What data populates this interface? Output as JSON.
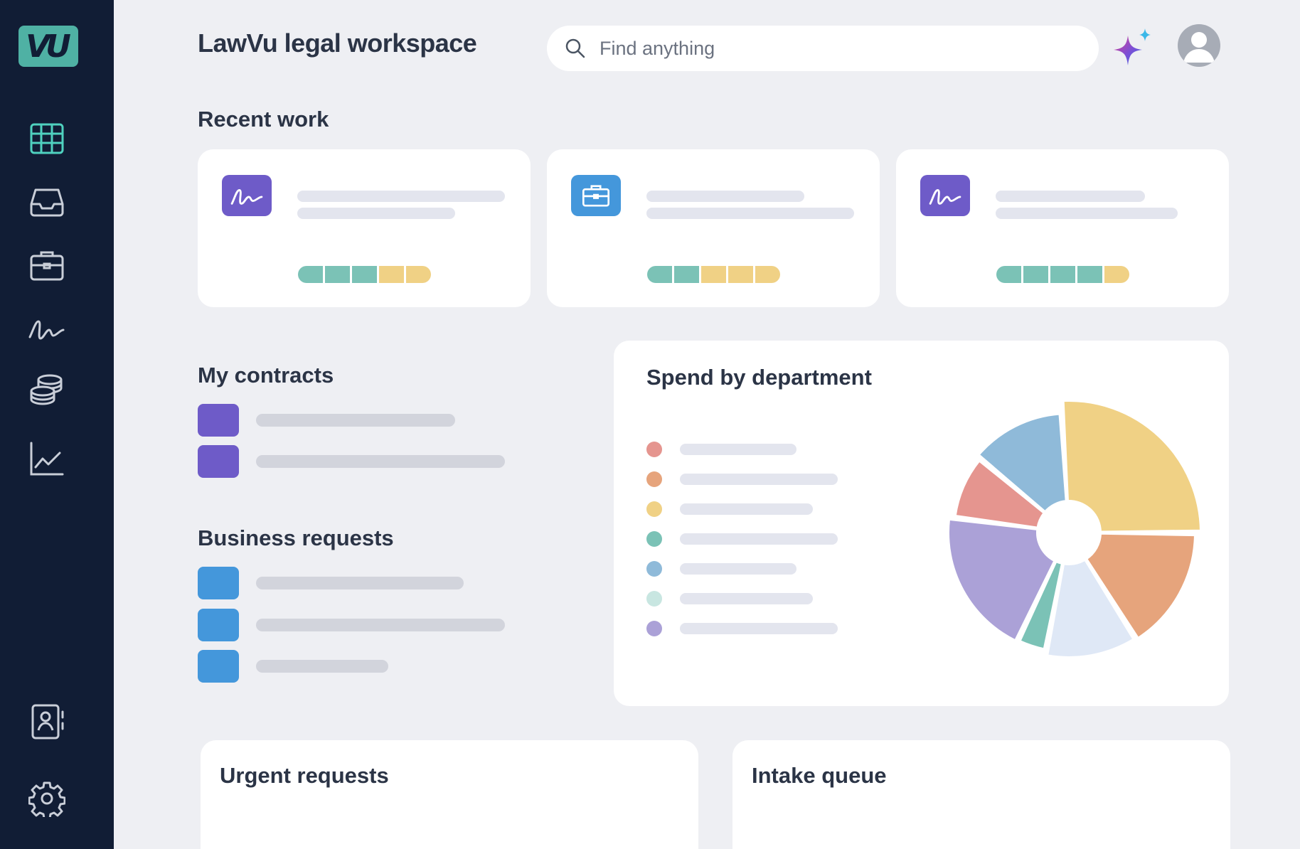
{
  "app": {
    "logo_text": "VU",
    "title": "LawVu legal workspace"
  },
  "sidebar": {
    "items": [
      {
        "icon": "grid-icon",
        "name": "dashboard"
      },
      {
        "icon": "inbox-icon",
        "name": "inbox"
      },
      {
        "icon": "briefcase-icon",
        "name": "matters"
      },
      {
        "icon": "signature-icon",
        "name": "contracts"
      },
      {
        "icon": "database-icon",
        "name": "spend"
      },
      {
        "icon": "line-chart-icon",
        "name": "insights"
      }
    ],
    "bottom_items": [
      {
        "icon": "contacts-icon",
        "name": "contacts"
      },
      {
        "icon": "gear-icon",
        "name": "settings"
      }
    ]
  },
  "search": {
    "placeholder": "Find anything",
    "value": ""
  },
  "sections": {
    "recent_work": "Recent work",
    "my_contracts": "My contracts",
    "business_requests": "Business requests",
    "spend_by_department": "Spend by department",
    "urgent_requests": "Urgent requests",
    "intake_queue": "Intake queue"
  },
  "recent_work": [
    {
      "icon": "signature-icon",
      "icon_color": "#6e5bc8",
      "progress": [
        "teal",
        "teal",
        "teal",
        "yellow",
        "yellow"
      ]
    },
    {
      "icon": "briefcase-icon",
      "icon_color": "#4497db",
      "progress": [
        "teal",
        "teal",
        "yellow",
        "yellow",
        "yellow"
      ]
    },
    {
      "icon": "signature-icon",
      "icon_color": "#6e5bc8",
      "progress": [
        "teal",
        "teal",
        "teal",
        "teal",
        "yellow"
      ]
    }
  ],
  "colors": {
    "sidebar_bg": "#111d35",
    "accent_teal": "#4fb1a4",
    "purple": "#6e5bc8",
    "blue": "#4497db",
    "progress_teal": "#7bc2b6",
    "progress_yellow": "#f0d185"
  },
  "chart_data": {
    "type": "pie",
    "title": "Spend by department",
    "donut": true,
    "slices": [
      {
        "value": 26,
        "color": "#f0d185"
      },
      {
        "value": 16,
        "color": "#e6a47c"
      },
      {
        "value": 12,
        "color": "#dfe8f6"
      },
      {
        "value": 4,
        "color": "#7bc2b6"
      },
      {
        "value": 20,
        "color": "#aba1d7"
      },
      {
        "value": 9,
        "color": "#e5958f"
      },
      {
        "value": 13,
        "color": "#8fbad9"
      }
    ],
    "legend_colors": [
      "#e5958f",
      "#e6a47c",
      "#f0d185",
      "#7bc2b6",
      "#8fbad9",
      "#c8e6e1",
      "#aba1d7"
    ]
  }
}
